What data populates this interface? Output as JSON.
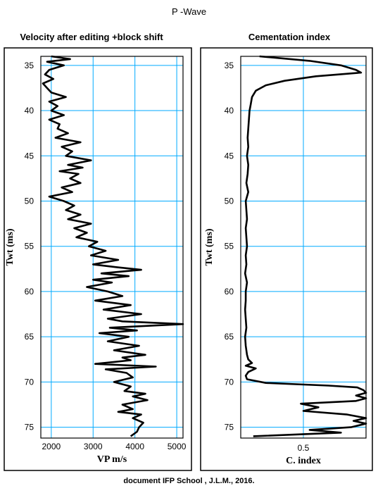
{
  "page": {
    "title": "P -Wave",
    "footer": "document IFP School , J.L.M., 2016."
  },
  "chart_data": [
    {
      "type": "line",
      "title": "Velocity after editing +block shift",
      "xlabel": "VP m/s",
      "ylabel": "Twt (ms)",
      "xlim": [
        1750,
        5150
      ],
      "ylim": [
        34,
        76.2
      ],
      "y_inverted": true,
      "grid": true,
      "grid_color": "#00aaff",
      "line_color": "#000000",
      "xticks": [
        2000,
        3000,
        4000,
        5000
      ],
      "yticks": [
        35,
        40,
        45,
        50,
        55,
        60,
        65,
        70,
        75
      ],
      "series": [
        {
          "depth": [
            34.0,
            34.3,
            34.6,
            35.0,
            35.5,
            36.0,
            36.5,
            37.0,
            37.5,
            38.0,
            38.5,
            39.0,
            39.5,
            40.0,
            40.5,
            41.0,
            41.5,
            42.0,
            42.5,
            43.0,
            43.5,
            44.0,
            44.5,
            45.0,
            45.5,
            46.0,
            46.3,
            46.7,
            47.0,
            47.5,
            48.0,
            48.5,
            49.0,
            49.5,
            50.0,
            50.5,
            51.0,
            51.5,
            52.0,
            52.5,
            53.0,
            53.5,
            54.0,
            54.5,
            55.0,
            55.5,
            56.0,
            56.5,
            57.0,
            57.3,
            57.6,
            58.0,
            58.3,
            58.7,
            59.0,
            59.5,
            60.0,
            60.5,
            61.0,
            61.5,
            62.0,
            62.5,
            63.0,
            63.3,
            63.6,
            64.0,
            64.3,
            64.6,
            65.0,
            65.5,
            66.0,
            66.5,
            67.0,
            67.3,
            67.6,
            68.0,
            68.3,
            68.6,
            69.0,
            69.5,
            70.0,
            70.5,
            71.0,
            71.3,
            71.6,
            72.0,
            72.5,
            73.0,
            73.3,
            73.6,
            74.0,
            74.5,
            75.0,
            75.5,
            76.0
          ],
          "values": [
            2000,
            2450,
            1900,
            2300,
            1950,
            1850,
            2050,
            1800,
            1900,
            2000,
            2350,
            1950,
            2150,
            2000,
            2300,
            1950,
            2200,
            2150,
            2400,
            2100,
            2700,
            2250,
            2500,
            2350,
            2950,
            2400,
            2750,
            2200,
            2650,
            2450,
            2700,
            2250,
            2500,
            1950,
            2300,
            2550,
            2350,
            2700,
            2400,
            2950,
            2550,
            2850,
            2600,
            3100,
            2900,
            3300,
            2950,
            3600,
            3000,
            3550,
            4150,
            3200,
            3850,
            3000,
            3450,
            2850,
            3350,
            3700,
            3050,
            3900,
            3250,
            4150,
            3350,
            3700,
            5150,
            3400,
            4050,
            3150,
            3850,
            3350,
            4100,
            3500,
            4250,
            3700,
            3900,
            3050,
            4500,
            3300,
            3800,
            3950,
            3500,
            3900,
            3750,
            4250,
            3950,
            4300,
            3700,
            3950,
            3600,
            4150,
            3950,
            4200,
            4100,
            4050,
            3900
          ]
        }
      ]
    },
    {
      "type": "line",
      "title": "Cementation index",
      "xlabel": "C. index",
      "ylabel": "Twt (ms)",
      "xlim": [
        0,
        1
      ],
      "ylim": [
        34,
        76.2
      ],
      "y_inverted": true,
      "grid": true,
      "grid_color": "#00aaff",
      "line_color": "#000000",
      "xticks": [
        0.5
      ],
      "yticks": [
        35,
        40,
        45,
        50,
        55,
        60,
        65,
        70,
        75
      ],
      "series": [
        {
          "depth": [
            34.0,
            34.5,
            35.0,
            35.5,
            35.8,
            36.2,
            36.7,
            37.2,
            37.8,
            38.5,
            39.3,
            40.0,
            41.0,
            42.0,
            43.0,
            44.0,
            45.0,
            46.0,
            47.0,
            48.0,
            49.0,
            50.0,
            51.0,
            52.0,
            53.0,
            54.0,
            55.0,
            56.0,
            57.0,
            58.0,
            59.0,
            60.0,
            61.0,
            62.0,
            63.0,
            64.0,
            65.0,
            66.0,
            67.0,
            67.5,
            67.9,
            68.2,
            68.5,
            68.9,
            69.3,
            69.7,
            70.1,
            70.4,
            70.6,
            70.9,
            71.2,
            71.5,
            71.8,
            72.1,
            72.4,
            72.8,
            73.2,
            73.6,
            74.0,
            74.3,
            74.6,
            75.0,
            75.3,
            75.6,
            76.0
          ],
          "values": [
            0.15,
            0.55,
            0.8,
            0.92,
            0.96,
            0.6,
            0.35,
            0.2,
            0.12,
            0.09,
            0.08,
            0.07,
            0.065,
            0.06,
            0.055,
            0.06,
            0.05,
            0.06,
            0.055,
            0.045,
            0.06,
            0.04,
            0.045,
            0.05,
            0.04,
            0.045,
            0.05,
            0.04,
            0.045,
            0.035,
            0.05,
            0.04,
            0.04,
            0.035,
            0.04,
            0.045,
            0.035,
            0.04,
            0.05,
            0.06,
            0.09,
            0.04,
            0.12,
            0.06,
            0.04,
            0.05,
            0.2,
            0.7,
            0.93,
            0.98,
            1.0,
            0.92,
            1.0,
            0.92,
            0.48,
            0.62,
            0.5,
            0.85,
            1.0,
            0.9,
            1.0,
            0.88,
            0.55,
            0.8,
            0.1
          ]
        }
      ]
    }
  ]
}
